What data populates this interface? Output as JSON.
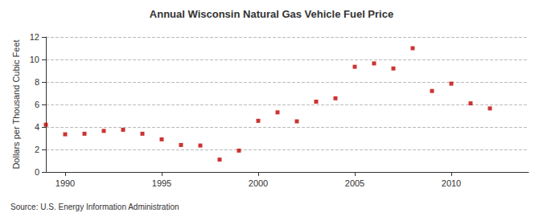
{
  "chart_data": {
    "type": "scatter",
    "title": "Annual Wisconsin Natural Gas Vehicle Fuel Price",
    "y_label": "Dollars per Thousand Cubic Feet",
    "source": "Source: U.S. Energy Information Administration",
    "x": [
      1989,
      1990,
      1991,
      1992,
      1993,
      1994,
      1995,
      1996,
      1997,
      1998,
      1999,
      2000,
      2001,
      2002,
      2003,
      2004,
      2005,
      2006,
      2007,
      2008,
      2009,
      2010,
      2011,
      2012
    ],
    "values": [
      4.2,
      3.35,
      3.4,
      3.65,
      3.75,
      3.4,
      2.9,
      2.4,
      2.35,
      1.1,
      1.9,
      4.55,
      5.3,
      4.5,
      6.25,
      6.55,
      9.35,
      9.65,
      9.2,
      11.0,
      7.2,
      7.85,
      6.1,
      5.65
    ],
    "color": "#c00000",
    "marker": "square",
    "xlim": [
      1989,
      2014
    ],
    "xticks": [
      1990,
      1995,
      2000,
      2005,
      2010
    ],
    "ylim": [
      0,
      12
    ],
    "yticks": [
      0,
      2,
      4,
      6,
      8,
      10,
      12
    ],
    "grid": true
  }
}
